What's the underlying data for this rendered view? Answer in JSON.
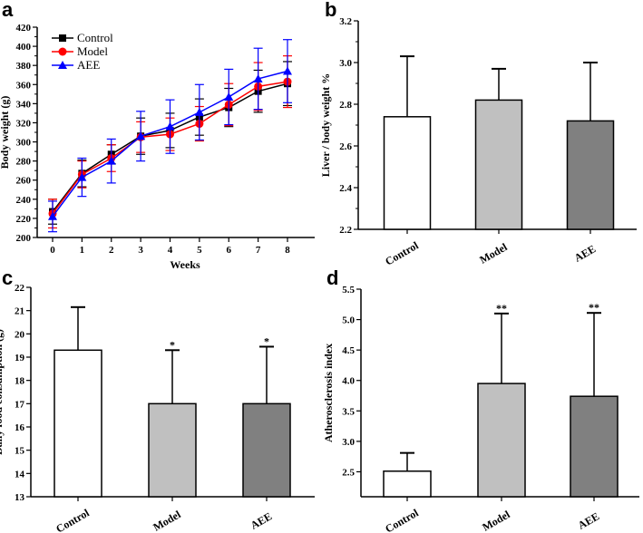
{
  "chart_data": [
    {
      "panel": "a",
      "type": "line",
      "xlabel": "Weeks",
      "ylabel": "Body weight (g)",
      "x": [
        0,
        1,
        2,
        3,
        4,
        5,
        6,
        7,
        8
      ],
      "xticks": [
        "0",
        "1",
        "2",
        "3",
        "4",
        "5",
        "6",
        "7",
        "8"
      ],
      "ylim": [
        200,
        420
      ],
      "yticks": [
        200,
        220,
        240,
        260,
        280,
        300,
        320,
        340,
        360,
        380,
        400,
        420
      ],
      "legend": "top-left",
      "grid": false,
      "series": [
        {
          "name": "Control",
          "color": "#000000",
          "marker": "square",
          "values": [
            227,
            267,
            287,
            306,
            312,
            326,
            336,
            353,
            361
          ],
          "error": [
            13,
            14,
            10,
            19,
            18,
            19,
            20,
            22,
            23
          ]
        },
        {
          "name": "Model",
          "color": "#ff0000",
          "marker": "circle",
          "values": [
            225,
            266,
            283,
            305,
            308,
            319,
            339,
            358,
            363
          ],
          "error": [
            15,
            14,
            14,
            16,
            17,
            18,
            22,
            25,
            27
          ]
        },
        {
          "name": "AEE",
          "color": "#0000ff",
          "marker": "triangle",
          "values": [
            222,
            263,
            280,
            306,
            316,
            331,
            347,
            366,
            374
          ],
          "error": [
            16,
            20,
            23,
            26,
            28,
            29,
            29,
            32,
            33
          ]
        }
      ]
    },
    {
      "panel": "b",
      "type": "bar",
      "ylabel": "Liver / body weight  %",
      "categories": [
        "Control",
        "Model",
        "AEE"
      ],
      "values": [
        2.74,
        2.82,
        2.72
      ],
      "error_upper": [
        3.03,
        2.97,
        3.0
      ],
      "colors": [
        "#ffffff",
        "#c0c0c0",
        "#808080"
      ],
      "ylim": [
        2.2,
        3.2
      ],
      "yticks": [
        "2.2",
        "2.4",
        "2.6",
        "2.8",
        "3.0",
        "3.2"
      ],
      "annotations": [
        "",
        "",
        ""
      ]
    },
    {
      "panel": "c",
      "type": "bar",
      "ylabel": "Daily food consumption (g)",
      "categories": [
        "Control",
        "Model",
        "AEE"
      ],
      "values": [
        19.3,
        17.0,
        17.0
      ],
      "error_upper": [
        21.15,
        19.3,
        19.45
      ],
      "colors": [
        "#ffffff",
        "#c0c0c0",
        "#808080"
      ],
      "ylim": [
        13,
        22
      ],
      "yticks": [
        "13",
        "14",
        "15",
        "16",
        "17",
        "18",
        "19",
        "20",
        "21",
        "22"
      ],
      "annotations": [
        "",
        "*",
        "*"
      ]
    },
    {
      "panel": "d",
      "type": "bar",
      "ylabel": "Atherosclerosis index",
      "categories": [
        "Control",
        "Model",
        "AEE"
      ],
      "values": [
        2.51,
        3.95,
        3.74
      ],
      "error_upper": [
        2.81,
        5.1,
        5.11
      ],
      "colors": [
        "#ffffff",
        "#c0c0c0",
        "#808080"
      ],
      "ylim": [
        2.09,
        5.5
      ],
      "yticks": [
        "2.5",
        "3.0",
        "3.5",
        "4.0",
        "4.5",
        "5.0",
        "5.5"
      ],
      "annotations": [
        "",
        "**",
        "**"
      ]
    }
  ]
}
